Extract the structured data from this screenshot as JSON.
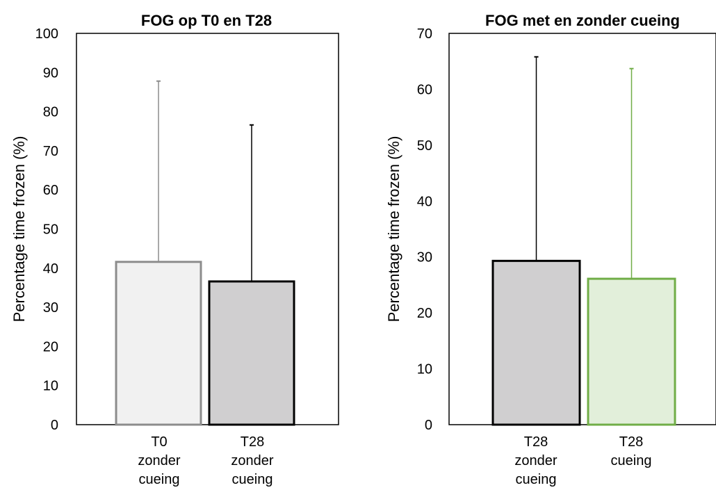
{
  "chart_data": [
    {
      "type": "bar",
      "title": "FOG op T0 en T28",
      "ylabel": "Percentage time frozen (%)",
      "xlabel": "",
      "ylim": [
        0,
        100
      ],
      "yticks": [
        0,
        10,
        20,
        30,
        40,
        50,
        60,
        70,
        80,
        90,
        100
      ],
      "grid": false,
      "legend": "none",
      "categories": [
        [
          "T0",
          "zonder",
          "cueing"
        ],
        [
          "T28",
          "zonder",
          "cueing"
        ]
      ],
      "values": [
        41.6,
        36.6
      ],
      "error_upper": [
        87.8,
        76.6
      ],
      "bar_fill": [
        "#f1f1f1",
        "#d0cfd0"
      ],
      "bar_stroke": [
        "#8c8c8c",
        "#000000"
      ],
      "error_color": [
        "#8c8c8c",
        "#000000"
      ]
    },
    {
      "type": "bar",
      "title": "FOG met en zonder cueing",
      "ylabel": "Percentage time frozen (%)",
      "xlabel": "",
      "ylim": [
        0,
        70
      ],
      "yticks": [
        0,
        10,
        20,
        30,
        40,
        50,
        60,
        70
      ],
      "grid": false,
      "legend": "none",
      "categories": [
        [
          "T28",
          "zonder",
          "cueing"
        ],
        [
          "T28",
          "cueing"
        ]
      ],
      "values": [
        29.3,
        26.1
      ],
      "error_upper": [
        65.8,
        63.7
      ],
      "bar_fill": [
        "#d0cfd0",
        "#e2efda"
      ],
      "bar_stroke": [
        "#000000",
        "#70ad47"
      ],
      "error_color": [
        "#000000",
        "#70ad47"
      ]
    }
  ]
}
